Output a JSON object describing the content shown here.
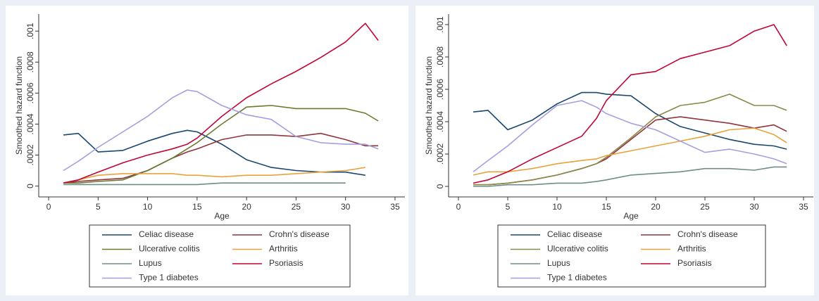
{
  "chart_data": [
    {
      "type": "line",
      "x_label": "Age",
      "y_label": "Smoothed hazard function",
      "x": [
        1.5,
        3,
        5,
        7.5,
        10,
        12.5,
        14,
        15,
        17.5,
        20,
        22.5,
        25,
        27.5,
        30,
        32,
        33.3
      ],
      "xlim": [
        -1,
        36
      ],
      "xticks": [
        0,
        5,
        10,
        15,
        20,
        25,
        30,
        35
      ],
      "ylim": [
        -7e-05,
        0.00111
      ],
      "yticks": [
        0,
        {
          "value": 0.0002,
          "label": ".0002"
        },
        {
          "value": 0.0004,
          "label": ".0004"
        },
        {
          "value": 0.0006,
          "label": ".0006"
        },
        {
          "value": 0.0008,
          "label": ".0008"
        },
        {
          "value": 0.001,
          "label": ".001"
        }
      ],
      "series": [
        {
          "name": "Celiac disease",
          "color": "#1a476f",
          "values": [
            0.00033,
            0.00034,
            0.00022,
            0.00023,
            0.00029,
            0.00034,
            0.00036,
            0.00035,
            0.00027,
            0.00017,
            0.00012,
            0.0001,
            9e-05,
            9e-05,
            7e-05,
            null
          ]
        },
        {
          "name": "Crohn's disease",
          "color": "#90353b",
          "values": [
            2e-05,
            3e-05,
            4e-05,
            5e-05,
            0.0001,
            0.00018,
            0.00022,
            0.00024,
            0.0003,
            0.00033,
            0.00033,
            0.00032,
            0.00034,
            0.0003,
            0.00026,
            0.00026
          ]
        },
        {
          "name": "Ulcerative colitis",
          "color": "#6b7a2f",
          "values": [
            2e-05,
            2e-05,
            3e-05,
            4e-05,
            0.0001,
            0.00018,
            0.00024,
            0.00028,
            0.0004,
            0.00051,
            0.00052,
            0.0005,
            0.0005,
            0.0005,
            0.00047,
            0.00042
          ]
        },
        {
          "name": "Arthritis",
          "color": "#e8a33a",
          "values": [
            2e-05,
            4e-05,
            7e-05,
            8e-05,
            8e-05,
            8e-05,
            7e-05,
            7e-05,
            6e-05,
            7e-05,
            7e-05,
            8e-05,
            9e-05,
            0.0001,
            0.00012,
            null
          ]
        },
        {
          "name": "Lupus",
          "color": "#6e8e84",
          "values": [
            1e-05,
            1e-05,
            1e-05,
            1e-05,
            1e-05,
            1e-05,
            1e-05,
            1e-05,
            2e-05,
            2e-05,
            2e-05,
            2e-05,
            2e-05,
            2e-05,
            null,
            null
          ]
        },
        {
          "name": "Psoriasis",
          "color": "#c10534",
          "values": [
            2e-05,
            4e-05,
            9e-05,
            0.00015,
            0.0002,
            0.00024,
            0.00027,
            0.00031,
            0.00045,
            0.00057,
            0.00066,
            0.00074,
            0.00083,
            0.00093,
            0.00105,
            0.00094
          ]
        },
        {
          "name": "Type 1 diabetes",
          "color": "#a59ee0",
          "values": [
            0.0001,
            0.00016,
            0.00025,
            0.00035,
            0.00045,
            0.00057,
            0.00062,
            0.00061,
            0.00052,
            0.00046,
            0.00043,
            0.00032,
            0.00028,
            0.00027,
            0.00027,
            0.00024
          ]
        }
      ]
    },
    {
      "type": "line",
      "x_label": "Age",
      "y_label": "Smoothed hazard function",
      "x": [
        1.5,
        3,
        5,
        7.5,
        10,
        12.5,
        14,
        15,
        17.5,
        20,
        22.5,
        25,
        27.5,
        30,
        32,
        33.3
      ],
      "xlim": [
        -1,
        36
      ],
      "xticks": [
        0,
        5,
        10,
        15,
        20,
        25,
        30,
        35
      ],
      "ylim": [
        -6.5e-05,
        0.001065
      ],
      "yticks": [
        0,
        {
          "value": 0.0002,
          "label": ".0002"
        },
        {
          "value": 0.0004,
          "label": ".0004"
        },
        {
          "value": 0.0006,
          "label": ".0006"
        },
        {
          "value": 0.0008,
          "label": ".0008"
        },
        {
          "value": 0.001,
          "label": ".001"
        }
      ],
      "series": [
        {
          "name": "Celiac disease",
          "color": "#1a476f",
          "values": [
            0.00046,
            0.00047,
            0.00035,
            0.00041,
            0.00051,
            0.00058,
            0.00058,
            0.00057,
            0.00056,
            0.00045,
            0.00037,
            0.00033,
            0.00029,
            0.00026,
            0.00025,
            0.00023
          ]
        },
        {
          "name": "Crohn's disease",
          "color": "#90353b",
          "values": [
            1e-05,
            1e-05,
            2e-05,
            4e-05,
            7e-05,
            0.00011,
            0.00014,
            0.00017,
            0.00029,
            0.00041,
            0.00043,
            0.00041,
            0.00039,
            0.00036,
            0.00038,
            0.00034
          ]
        },
        {
          "name": "Ulcerative colitis",
          "color": "#8a8a4a",
          "values": [
            1e-05,
            1e-05,
            2e-05,
            4e-05,
            7e-05,
            0.00011,
            0.00014,
            0.00018,
            0.0003,
            0.00043,
            0.0005,
            0.00052,
            0.00057,
            0.0005,
            0.0005,
            0.00047
          ]
        },
        {
          "name": "Arthritis",
          "color": "#e8a33a",
          "values": [
            7e-05,
            9e-05,
            9e-05,
            0.00011,
            0.00014,
            0.00016,
            0.00017,
            0.00019,
            0.00022,
            0.00025,
            0.00028,
            0.00031,
            0.00035,
            0.00036,
            0.00032,
            0.00027
          ]
        },
        {
          "name": "Lupus",
          "color": "#6e8e84",
          "values": [
            0,
            0,
            1e-05,
            1e-05,
            2e-05,
            2e-05,
            3e-05,
            4e-05,
            7e-05,
            8e-05,
            9e-05,
            0.00011,
            0.00011,
            0.0001,
            0.00012,
            0.00012
          ]
        },
        {
          "name": "Psoriasis",
          "color": "#c10534",
          "values": [
            2e-05,
            4e-05,
            9e-05,
            0.00017,
            0.00024,
            0.00031,
            0.00042,
            0.00053,
            0.00069,
            0.00071,
            0.00079,
            0.00083,
            0.00087,
            0.00096,
            0.001,
            0.00087
          ]
        },
        {
          "name": "Type 1 diabetes",
          "color": "#a59ee0",
          "values": [
            9e-05,
            0.00016,
            0.00025,
            0.00038,
            0.0005,
            0.00053,
            0.00049,
            0.00045,
            0.00039,
            0.00035,
            0.00028,
            0.00021,
            0.00023,
            0.0002,
            0.00017,
            0.00014
          ]
        }
      ]
    }
  ]
}
